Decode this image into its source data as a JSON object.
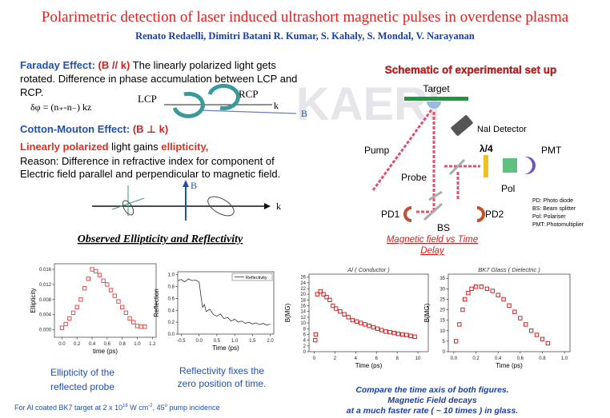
{
  "header": {
    "title": "Polarimetric detection of laser induced ultrashort  magnetic pulses in overdense plasma",
    "authors": "Renato Redaelli, Dimitri Batani  R. Kumar, S. Kahaly, S. Mondal, V. Narayanan"
  },
  "watermark": "KAERI",
  "faraday": {
    "heading": "Faraday Effect:",
    "condition": "(B // k)",
    "lines": [
      "The linearly polarized light gets",
      "rotated. Difference in phase accumulation  between LCP and",
      "RCP."
    ],
    "formula": "δφ = (n₊-n₋) kz",
    "lcp": "LCP",
    "rcp": "RCP",
    "k": "k",
    "b": "B"
  },
  "cotton_mouton": {
    "heading": "Cotton-Mouton Effect:",
    "condition": "(B ⊥ k)",
    "line1": [
      "Linearly polarized",
      "light gains",
      "ellipticity,"
    ],
    "lines": [
      "Reason: Difference in refractive index for component of",
      "Electric field parallel and perpendicular to magnetic field."
    ],
    "b": "B",
    "k": "k"
  },
  "schematic": {
    "heading": "Schematic of experimental set up",
    "target": "Target",
    "detector": "NaI Detector",
    "pump": "Pump",
    "waveplate": "λ/4",
    "pmt": "PMT",
    "probe": "Probe",
    "pol": "Pol",
    "pd1": "PD1",
    "pd2": "PD2",
    "bs": "BS",
    "legend": [
      "PD: Photo diode",
      "BS: Beam splitter",
      "Pol: Polariser",
      "PMT: Photomultiplier"
    ],
    "caption": [
      "Magnetic field vs Time",
      "Delay"
    ]
  },
  "observed": {
    "heading": "Observed Ellipticity and Reflectivity",
    "plots": [
      {
        "type": "scatter",
        "color": "#d9534f",
        "xlabel": "time (ps)",
        "ylabel": "Ellipticity",
        "x": [
          0.0,
          0.05,
          0.1,
          0.15,
          0.2,
          0.25,
          0.3,
          0.35,
          0.4,
          0.45,
          0.5,
          0.55,
          0.6,
          0.65,
          0.7,
          0.75,
          0.8,
          0.85,
          0.9,
          0.95,
          1.0,
          1.05,
          1.1
        ],
        "y": [
          0.0005,
          0.0015,
          0.003,
          0.0045,
          0.006,
          0.008,
          0.011,
          0.0135,
          0.016,
          0.0155,
          0.0145,
          0.013,
          0.012,
          0.0105,
          0.009,
          0.0075,
          0.006,
          0.0045,
          0.003,
          0.002,
          0.001,
          0.0008,
          0.0008
        ],
        "xlim": [
          -0.1,
          1.25
        ],
        "ylim": [
          -0.002,
          0.0175
        ],
        "xticks": [
          {
            "value": 0,
            "label": "0.0"
          },
          0.2,
          0.4,
          0.6,
          0.8,
          {
            "value": 1,
            "label": "1.0"
          },
          1.2
        ],
        "yticks": [
          {
            "value": 0,
            "label": "0.000"
          },
          0.004,
          0.008,
          0.012,
          0.016
        ]
      },
      {
        "type": "line",
        "color": "#333333",
        "xlabel": "Time (ps)",
        "ylabel": "Reflection",
        "legend": "Reflectivity",
        "x": [
          -0.6,
          -0.5,
          -0.4,
          -0.3,
          -0.2,
          -0.1,
          0.0,
          0.05,
          0.1,
          0.15,
          0.2,
          0.3,
          0.4,
          0.5,
          0.6,
          0.7,
          0.8,
          0.9,
          1.0,
          1.1,
          1.2,
          1.3,
          1.4,
          1.5,
          1.6,
          1.7,
          1.8,
          1.9,
          2.0
        ],
        "y": [
          0.9,
          0.92,
          0.88,
          0.93,
          0.9,
          0.91,
          0.88,
          0.65,
          0.45,
          0.5,
          0.38,
          0.42,
          0.33,
          0.3,
          0.34,
          0.26,
          0.28,
          0.22,
          0.25,
          0.2,
          0.22,
          0.18,
          0.2,
          0.17,
          0.19,
          0.16,
          0.18,
          0.15,
          0.17
        ],
        "xlim": [
          -0.6,
          2.1
        ],
        "ylim": [
          0,
          1.05
        ],
        "xticks": [
          -0.5,
          {
            "value": 0,
            "label": "0.0"
          },
          0.5,
          {
            "value": 1,
            "label": "1.0"
          },
          1.5,
          {
            "value": 2,
            "label": "2.0"
          }
        ],
        "yticks": [
          {
            "value": 0,
            "label": "0.0"
          },
          0.2,
          0.4,
          0.6,
          0.8,
          {
            "value": 1,
            "label": "1.0"
          }
        ]
      },
      {
        "type": "scatter",
        "color": "#cc2222",
        "title": "Al ( Conductor )",
        "xlabel": "Time (ps)",
        "ylabel": "B(MG)",
        "x": [
          0.1,
          0.15,
          0.3,
          0.6,
          0.9,
          1.2,
          1.5,
          1.8,
          2.1,
          2.5,
          2.9,
          3.3,
          3.7,
          4.1,
          4.5,
          4.9,
          5.3,
          5.7,
          6.1,
          6.5,
          6.9,
          7.3,
          7.7,
          8.1,
          8.5,
          8.9,
          9.3,
          9.7
        ],
        "y": [
          4,
          6,
          20,
          21,
          20,
          19,
          18,
          16,
          15,
          14,
          13,
          12,
          11,
          10.5,
          10,
          9.5,
          9,
          8.5,
          8,
          7.5,
          7,
          6.8,
          6.5,
          6.2,
          6,
          5.8,
          5.5,
          5.2
        ],
        "xlim": [
          -0.5,
          11
        ],
        "ylim": [
          0,
          27
        ],
        "xticks": [
          0,
          2,
          4,
          6,
          8,
          10
        ],
        "yticks": [
          0,
          2,
          4,
          6,
          8,
          10,
          12,
          14,
          16,
          18,
          20,
          22,
          24,
          26
        ]
      },
      {
        "type": "scatter",
        "color": "#cc2222",
        "title": "BK7 Glass ( Dielectric )",
        "xlabel": "Time (ps)",
        "ylabel": "B(MG)",
        "x": [
          0.02,
          0.05,
          0.08,
          0.1,
          0.13,
          0.16,
          0.2,
          0.25,
          0.3,
          0.35,
          0.4,
          0.45,
          0.5,
          0.55,
          0.6,
          0.65,
          0.7,
          0.75,
          0.8,
          0.85
        ],
        "y": [
          5,
          13,
          20,
          25,
          28,
          30,
          31,
          31,
          30,
          29,
          27,
          25,
          22,
          19,
          16,
          13,
          10,
          8,
          6,
          4
        ],
        "xlim": [
          -0.05,
          1.05
        ],
        "ylim": [
          0,
          37
        ],
        "xticks": [
          {
            "value": 0,
            "label": "0.0"
          },
          0.2,
          0.4,
          0.6,
          0.8,
          {
            "value": 1,
            "label": "1.0"
          }
        ],
        "yticks": [
          0,
          5,
          10,
          15,
          20,
          25,
          30,
          35
        ]
      }
    ],
    "caption_ellipticity": [
      "Ellipticity of the",
      "reflected probe"
    ],
    "caption_reflectivity": [
      "Reflectivity fixes the",
      "zero position of time."
    ]
  },
  "footer": {
    "note": [
      "For Al coated BK7 target at 2 x 10",
      "16",
      " W cm",
      "-2",
      ", 45",
      "o",
      " pump incidence"
    ],
    "comparison": [
      "Compare the time axis of both figures.",
      "Magnetic Field decays",
      "at a much faster rate ( ~ 10 times ) in glass."
    ]
  }
}
